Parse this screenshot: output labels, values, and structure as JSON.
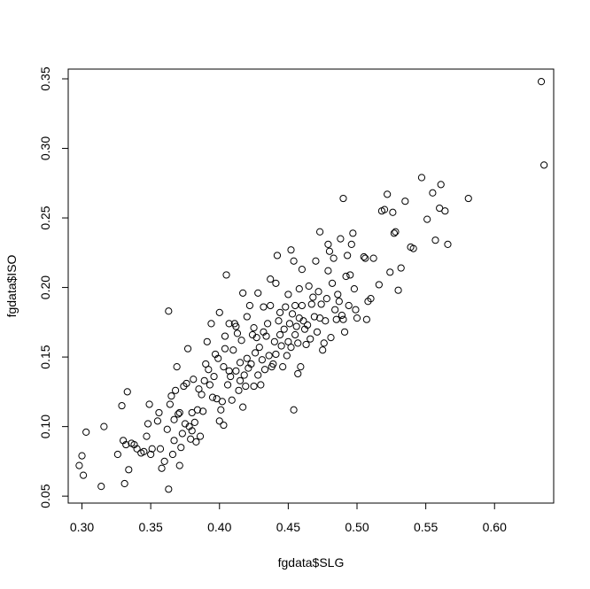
{
  "chart_data": {
    "type": "scatter",
    "title": "",
    "xlabel": "fgdata$SLG",
    "ylabel": "fgdata$ISO",
    "xlim": [
      0.29,
      0.643
    ],
    "ylim": [
      0.045,
      0.357
    ],
    "xticks": [
      {
        "value": 0.3,
        "label": "0.30"
      },
      {
        "value": 0.35,
        "label": "0.35"
      },
      {
        "value": 0.4,
        "label": "0.40"
      },
      {
        "value": 0.45,
        "label": "0.45"
      },
      {
        "value": 0.5,
        "label": "0.50"
      },
      {
        "value": 0.55,
        "label": "0.55"
      },
      {
        "value": 0.6,
        "label": "0.60"
      }
    ],
    "yticks": [
      {
        "value": 0.05,
        "label": "0.05"
      },
      {
        "value": 0.1,
        "label": "0.10"
      },
      {
        "value": 0.15,
        "label": "0.15"
      },
      {
        "value": 0.2,
        "label": "0.20"
      },
      {
        "value": 0.25,
        "label": "0.25"
      },
      {
        "value": 0.3,
        "label": "0.30"
      },
      {
        "value": 0.35,
        "label": "0.35"
      }
    ],
    "grid": false,
    "marker": "open-circle",
    "color": "#000000",
    "points": [
      [
        0.298,
        0.072
      ],
      [
        0.3,
        0.079
      ],
      [
        0.301,
        0.065
      ],
      [
        0.303,
        0.096
      ],
      [
        0.314,
        0.057
      ],
      [
        0.316,
        0.1
      ],
      [
        0.326,
        0.08
      ],
      [
        0.329,
        0.115
      ],
      [
        0.33,
        0.09
      ],
      [
        0.331,
        0.059
      ],
      [
        0.332,
        0.087
      ],
      [
        0.333,
        0.125
      ],
      [
        0.334,
        0.069
      ],
      [
        0.336,
        0.088
      ],
      [
        0.338,
        0.087
      ],
      [
        0.34,
        0.084
      ],
      [
        0.343,
        0.081
      ],
      [
        0.345,
        0.082
      ],
      [
        0.347,
        0.093
      ],
      [
        0.348,
        0.102
      ],
      [
        0.349,
        0.116
      ],
      [
        0.35,
        0.08
      ],
      [
        0.351,
        0.084
      ],
      [
        0.355,
        0.104
      ],
      [
        0.356,
        0.11
      ],
      [
        0.357,
        0.084
      ],
      [
        0.358,
        0.07
      ],
      [
        0.36,
        0.075
      ],
      [
        0.362,
        0.098
      ],
      [
        0.363,
        0.055
      ],
      [
        0.363,
        0.183
      ],
      [
        0.364,
        0.116
      ],
      [
        0.365,
        0.122
      ],
      [
        0.366,
        0.08
      ],
      [
        0.367,
        0.09
      ],
      [
        0.367,
        0.105
      ],
      [
        0.368,
        0.126
      ],
      [
        0.369,
        0.143
      ],
      [
        0.37,
        0.109
      ],
      [
        0.371,
        0.072
      ],
      [
        0.371,
        0.11
      ],
      [
        0.372,
        0.085
      ],
      [
        0.373,
        0.095
      ],
      [
        0.374,
        0.129
      ],
      [
        0.375,
        0.102
      ],
      [
        0.376,
        0.131
      ],
      [
        0.377,
        0.156
      ],
      [
        0.378,
        0.1
      ],
      [
        0.379,
        0.091
      ],
      [
        0.38,
        0.097
      ],
      [
        0.38,
        0.11
      ],
      [
        0.381,
        0.134
      ],
      [
        0.382,
        0.103
      ],
      [
        0.383,
        0.089
      ],
      [
        0.384,
        0.112
      ],
      [
        0.385,
        0.127
      ],
      [
        0.386,
        0.093
      ],
      [
        0.387,
        0.123
      ],
      [
        0.388,
        0.111
      ],
      [
        0.389,
        0.133
      ],
      [
        0.39,
        0.145
      ],
      [
        0.391,
        0.161
      ],
      [
        0.392,
        0.141
      ],
      [
        0.393,
        0.13
      ],
      [
        0.394,
        0.174
      ],
      [
        0.395,
        0.121
      ],
      [
        0.396,
        0.136
      ],
      [
        0.397,
        0.152
      ],
      [
        0.398,
        0.12
      ],
      [
        0.399,
        0.149
      ],
      [
        0.4,
        0.182
      ],
      [
        0.4,
        0.104
      ],
      [
        0.401,
        0.112
      ],
      [
        0.402,
        0.118
      ],
      [
        0.403,
        0.101
      ],
      [
        0.403,
        0.143
      ],
      [
        0.404,
        0.156
      ],
      [
        0.404,
        0.165
      ],
      [
        0.405,
        0.209
      ],
      [
        0.406,
        0.13
      ],
      [
        0.407,
        0.14
      ],
      [
        0.407,
        0.174
      ],
      [
        0.408,
        0.136
      ],
      [
        0.409,
        0.119
      ],
      [
        0.41,
        0.155
      ],
      [
        0.411,
        0.174
      ],
      [
        0.412,
        0.172
      ],
      [
        0.412,
        0.14
      ],
      [
        0.413,
        0.167
      ],
      [
        0.414,
        0.126
      ],
      [
        0.415,
        0.133
      ],
      [
        0.415,
        0.146
      ],
      [
        0.416,
        0.162
      ],
      [
        0.417,
        0.196
      ],
      [
        0.417,
        0.114
      ],
      [
        0.418,
        0.137
      ],
      [
        0.419,
        0.129
      ],
      [
        0.42,
        0.149
      ],
      [
        0.42,
        0.179
      ],
      [
        0.421,
        0.142
      ],
      [
        0.422,
        0.187
      ],
      [
        0.423,
        0.145
      ],
      [
        0.424,
        0.166
      ],
      [
        0.425,
        0.171
      ],
      [
        0.425,
        0.129
      ],
      [
        0.426,
        0.153
      ],
      [
        0.427,
        0.164
      ],
      [
        0.428,
        0.196
      ],
      [
        0.428,
        0.137
      ],
      [
        0.429,
        0.157
      ],
      [
        0.43,
        0.13
      ],
      [
        0.431,
        0.148
      ],
      [
        0.432,
        0.168
      ],
      [
        0.432,
        0.186
      ],
      [
        0.433,
        0.141
      ],
      [
        0.434,
        0.165
      ],
      [
        0.435,
        0.174
      ],
      [
        0.436,
        0.151
      ],
      [
        0.437,
        0.187
      ],
      [
        0.437,
        0.206
      ],
      [
        0.438,
        0.143
      ],
      [
        0.439,
        0.145
      ],
      [
        0.44,
        0.161
      ],
      [
        0.441,
        0.203
      ],
      [
        0.441,
        0.152
      ],
      [
        0.442,
        0.223
      ],
      [
        0.443,
        0.176
      ],
      [
        0.444,
        0.182
      ],
      [
        0.444,
        0.166
      ],
      [
        0.445,
        0.158
      ],
      [
        0.446,
        0.143
      ],
      [
        0.447,
        0.17
      ],
      [
        0.448,
        0.186
      ],
      [
        0.449,
        0.151
      ],
      [
        0.45,
        0.195
      ],
      [
        0.45,
        0.161
      ],
      [
        0.451,
        0.174
      ],
      [
        0.452,
        0.227
      ],
      [
        0.452,
        0.157
      ],
      [
        0.453,
        0.181
      ],
      [
        0.454,
        0.219
      ],
      [
        0.454,
        0.112
      ],
      [
        0.455,
        0.187
      ],
      [
        0.455,
        0.166
      ],
      [
        0.456,
        0.172
      ],
      [
        0.457,
        0.16
      ],
      [
        0.457,
        0.138
      ],
      [
        0.458,
        0.199
      ],
      [
        0.458,
        0.178
      ],
      [
        0.459,
        0.143
      ],
      [
        0.46,
        0.213
      ],
      [
        0.46,
        0.187
      ],
      [
        0.461,
        0.176
      ],
      [
        0.462,
        0.17
      ],
      [
        0.463,
        0.159
      ],
      [
        0.464,
        0.173
      ],
      [
        0.465,
        0.201
      ],
      [
        0.466,
        0.163
      ],
      [
        0.467,
        0.188
      ],
      [
        0.468,
        0.193
      ],
      [
        0.469,
        0.179
      ],
      [
        0.47,
        0.219
      ],
      [
        0.471,
        0.168
      ],
      [
        0.472,
        0.197
      ],
      [
        0.473,
        0.24
      ],
      [
        0.473,
        0.178
      ],
      [
        0.474,
        0.188
      ],
      [
        0.475,
        0.155
      ],
      [
        0.476,
        0.16
      ],
      [
        0.477,
        0.176
      ],
      [
        0.478,
        0.192
      ],
      [
        0.479,
        0.231
      ],
      [
        0.479,
        0.212
      ],
      [
        0.48,
        0.226
      ],
      [
        0.481,
        0.164
      ],
      [
        0.482,
        0.203
      ],
      [
        0.483,
        0.221
      ],
      [
        0.484,
        0.184
      ],
      [
        0.485,
        0.177
      ],
      [
        0.486,
        0.195
      ],
      [
        0.487,
        0.19
      ],
      [
        0.488,
        0.235
      ],
      [
        0.489,
        0.18
      ],
      [
        0.49,
        0.264
      ],
      [
        0.49,
        0.177
      ],
      [
        0.491,
        0.168
      ],
      [
        0.492,
        0.208
      ],
      [
        0.493,
        0.223
      ],
      [
        0.494,
        0.187
      ],
      [
        0.495,
        0.209
      ],
      [
        0.496,
        0.231
      ],
      [
        0.497,
        0.239
      ],
      [
        0.498,
        0.199
      ],
      [
        0.499,
        0.184
      ],
      [
        0.5,
        0.178
      ],
      [
        0.505,
        0.222
      ],
      [
        0.506,
        0.221
      ],
      [
        0.507,
        0.177
      ],
      [
        0.508,
        0.19
      ],
      [
        0.51,
        0.192
      ],
      [
        0.512,
        0.221
      ],
      [
        0.516,
        0.202
      ],
      [
        0.518,
        0.255
      ],
      [
        0.52,
        0.256
      ],
      [
        0.522,
        0.267
      ],
      [
        0.524,
        0.211
      ],
      [
        0.526,
        0.254
      ],
      [
        0.527,
        0.239
      ],
      [
        0.528,
        0.24
      ],
      [
        0.53,
        0.198
      ],
      [
        0.532,
        0.214
      ],
      [
        0.535,
        0.262
      ],
      [
        0.539,
        0.229
      ],
      [
        0.541,
        0.228
      ],
      [
        0.547,
        0.279
      ],
      [
        0.551,
        0.249
      ],
      [
        0.555,
        0.268
      ],
      [
        0.557,
        0.234
      ],
      [
        0.56,
        0.257
      ],
      [
        0.561,
        0.274
      ],
      [
        0.564,
        0.255
      ],
      [
        0.566,
        0.231
      ],
      [
        0.581,
        0.264
      ],
      [
        0.634,
        0.348
      ],
      [
        0.636,
        0.288
      ]
    ]
  }
}
